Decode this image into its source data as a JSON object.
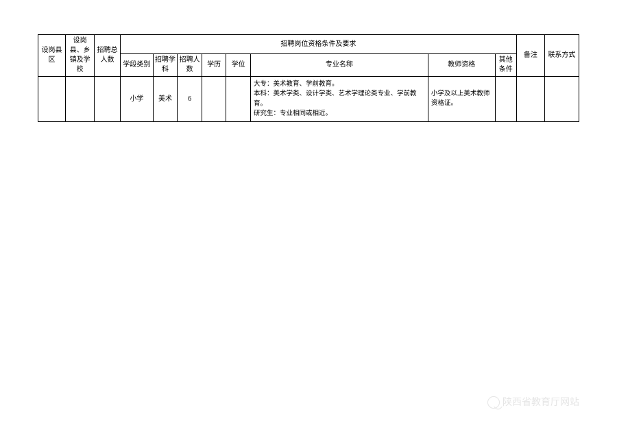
{
  "table": {
    "headers": {
      "county": "设岗县区",
      "township_school": "设岗县、乡镇及学校",
      "total_count": "招聘总人数",
      "qualifications_group": "招聘岗位资格条件及要求",
      "stage_type": "学段类别",
      "subject": "招聘学科",
      "count": "招聘人数",
      "education": "学历",
      "degree": "学位",
      "major": "专业名称",
      "teacher_cert": "教师资格",
      "other": "其他条件",
      "remark": "备注",
      "contact": "联系方式"
    },
    "row": {
      "county": "",
      "township_school": "",
      "total_count": "",
      "stage_type": "小学",
      "subject": "美术",
      "count": "6",
      "education": "",
      "degree": "",
      "major": "大专：美术教育、学前教育。\n本科：美术学类、设计学类、艺术学理论类专业、学前教育。\n研究生：专业相同或相近。",
      "teacher_cert": "小学及以上美术教师资格证。",
      "other": "",
      "remark": "",
      "contact": ""
    }
  },
  "watermark": "陕西省教育厅网站",
  "colors": {
    "border": "#000000",
    "background": "#ffffff",
    "watermark": "#e5e5e5"
  },
  "columnWidths": {
    "county": 36,
    "township_school": 38,
    "total_count": 34,
    "stage_type": 43,
    "subject": 32,
    "count": 32,
    "education": 32,
    "degree": 32,
    "major": 233,
    "teacher_cert": 88,
    "other": 28,
    "remark": 37,
    "contact": 45
  }
}
